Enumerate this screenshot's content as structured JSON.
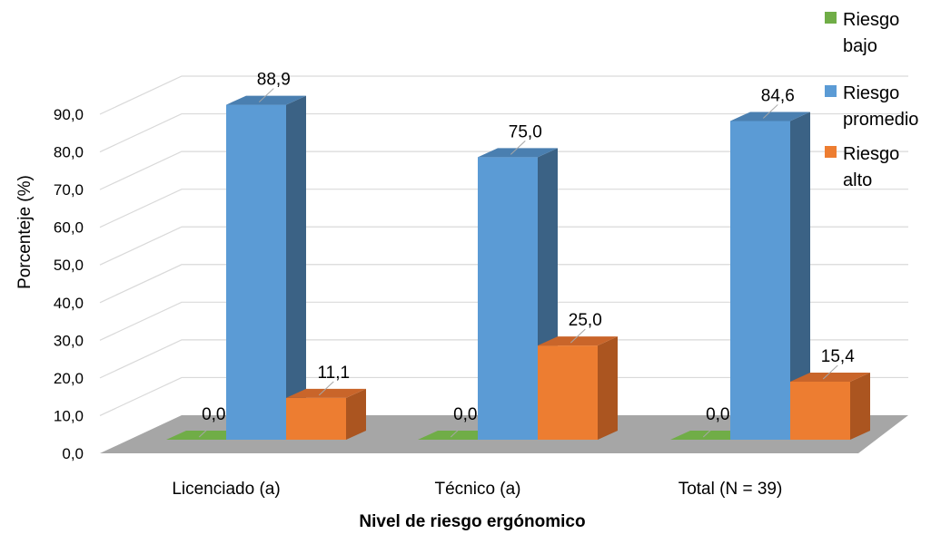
{
  "chart_data": {
    "type": "bar",
    "categories": [
      "Licenciado (a)",
      "Técnico (a)",
      "Total (N = 39)"
    ],
    "series": [
      {
        "name": "Riesgo bajo",
        "values": [
          0.0,
          0.0,
          0.0
        ],
        "labels": [
          "0,0",
          "0,0",
          "0,0"
        ],
        "color": "#70ad47",
        "side_color": "#4e7a30",
        "top_color": "#8cc063"
      },
      {
        "name": "Riesgo promedio",
        "values": [
          88.9,
          75.0,
          84.6
        ],
        "labels": [
          "88,9",
          "75,0",
          "84,6"
        ],
        "color": "#5b9bd5",
        "side_color": "#3b6285",
        "top_color": "#4a7fb0"
      },
      {
        "name": "Riesgo alto",
        "values": [
          11.1,
          25.0,
          15.4
        ],
        "labels": [
          "11,1",
          "25,0",
          "15,4"
        ],
        "color": "#ed7d31",
        "side_color": "#ab5520",
        "top_color": "#c9652a"
      }
    ],
    "xlabel": "Nivel de riesgo ergónomico",
    "ylabel": "Porcenteje (%)",
    "ylim": [
      0,
      90
    ],
    "yticks": [
      "0,0",
      "10,0",
      "20,0",
      "30,0",
      "40,0",
      "50,0",
      "60,0",
      "70,0",
      "80,0",
      "90,0"
    ],
    "legend": [
      {
        "lines": [
          "Riesgo",
          "bajo"
        ]
      },
      {
        "lines": [
          "Riesgo",
          "promedio"
        ]
      },
      {
        "lines": [
          "Riesgo",
          "alto"
        ]
      }
    ],
    "legend_position": "top-right",
    "grid": true,
    "floor_color": "#a6a6a6",
    "gridline_color": "#d9d9d9"
  }
}
